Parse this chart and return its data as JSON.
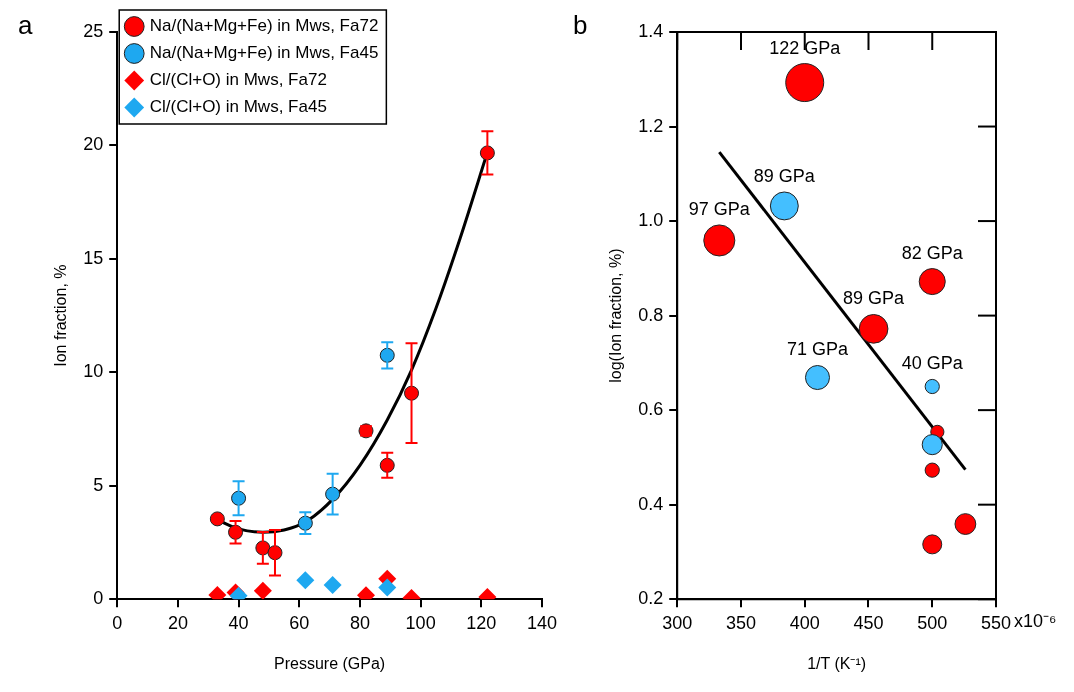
{
  "chart_data": [
    {
      "type": "scatter",
      "xlabel": "Pressure (GPa)",
      "ylabel": "Ion fraction, %",
      "annotations": [
        "a"
      ],
      "xlim": [
        0,
        140
      ],
      "xticks": [
        0,
        20,
        40,
        60,
        80,
        100,
        120,
        140
      ],
      "ylim": [
        0,
        25
      ],
      "yticks": [
        0,
        5,
        10,
        15,
        20,
        25
      ],
      "grid": false,
      "legend": "top left",
      "series": [
        {
          "name": "Na/(Na+Mg+Fe) in Mws, Fa72",
          "color": "#ff0000",
          "marker": "circle",
          "x": [
            33,
            39,
            48,
            52,
            82,
            89,
            97,
            122
          ],
          "values": [
            3.54,
            2.95,
            2.26,
            2.05,
            7.42,
            5.9,
            9.08,
            19.67
          ],
          "errors": [
            0.1,
            0.5,
            0.7,
            1.0,
            0.2,
            0.55,
            2.2,
            0.95
          ]
        },
        {
          "name": "Na/(Na+Mg+Fe) in Mws, Fa45",
          "color": "#1ea8f0",
          "marker": "circle",
          "x": [
            40,
            62,
            71,
            89
          ],
          "values": [
            4.45,
            3.35,
            4.63,
            10.75
          ],
          "errors": [
            0.75,
            0.48,
            0.9,
            0.58
          ]
        },
        {
          "name": "Cl/(Cl+O) in Mws, Fa72",
          "color": "#ff0000",
          "marker": "diamond",
          "x": [
            33,
            39,
            48,
            82,
            89,
            97,
            122
          ],
          "values": [
            0.19,
            0.3,
            0.37,
            0.17,
            0.9,
            0.05,
            0.1
          ]
        },
        {
          "name": "Cl/(Cl+O) in Mws, Fa45",
          "color": "#1ea8f0",
          "marker": "diamond",
          "x": [
            40,
            62,
            71,
            89
          ],
          "values": [
            0.15,
            0.83,
            0.63,
            0.52
          ]
        },
        {
          "type": "line",
          "color": "#000000",
          "marker": "none",
          "x": [
            33,
            40,
            48,
            55,
            62,
            71,
            80,
            89,
            97,
            105,
            113,
            122
          ],
          "values": [
            3.5,
            3.1,
            2.95,
            3.05,
            3.4,
            4.4,
            5.9,
            7.9,
            10.1,
            12.8,
            15.9,
            19.7
          ]
        }
      ]
    },
    {
      "type": "bubble",
      "xlabel": "1/T (K⁻¹)",
      "ylabel": "log(Ion fraction, %)",
      "xlim": [
        300,
        550
      ],
      "xticks": [
        300,
        350,
        400,
        450,
        500,
        550
      ],
      "ylim": [
        0.2,
        1.4
      ],
      "yticks": [
        0.2,
        0.4,
        0.6,
        0.8,
        {
          "value": 1.0,
          "label": "1.0"
        },
        1.2,
        1.4
      ],
      "grid": false,
      "legend": false,
      "annotations": [
        "b",
        "x10⁻⁶",
        {
          "text": "122 GPa",
          "x": 400,
          "y": 1.293
        },
        {
          "text": "89 GPa",
          "x": 384,
          "y": 1.032
        },
        {
          "text": "97 GPa",
          "x": 333,
          "y": 0.959
        },
        {
          "text": "82 GPa",
          "x": 500,
          "y": 0.872
        },
        {
          "text": "89 GPa",
          "x": 454,
          "y": 0.772
        },
        {
          "text": "71 GPa",
          "x": 410,
          "y": 0.669
        },
        {
          "text": "40 GPa",
          "x": 500,
          "y": 0.65
        }
      ],
      "series": [
        {
          "color": "#ff0000",
          "x": [
            400,
            333,
            500,
            454,
            504,
            500,
            526,
            500
          ],
          "values": [
            1.293,
            0.959,
            0.872,
            0.772,
            0.554,
            0.473,
            0.359,
            0.316
          ],
          "sizes": [
            1,
            0.67,
            0.47,
            0.57,
            0.12,
            0.14,
            0.3,
            0.25
          ]
        },
        {
          "color": "#44bfff",
          "x": [
            384,
            410,
            500,
            500
          ],
          "values": [
            1.032,
            0.669,
            0.65,
            0.527
          ],
          "sizes": [
            0.54,
            0.4,
            0.14,
            0.28
          ]
        },
        {
          "type": "line",
          "color": "#000000",
          "x": [
            333,
            526
          ],
          "values": [
            1.146,
            0.474
          ]
        }
      ]
    }
  ]
}
